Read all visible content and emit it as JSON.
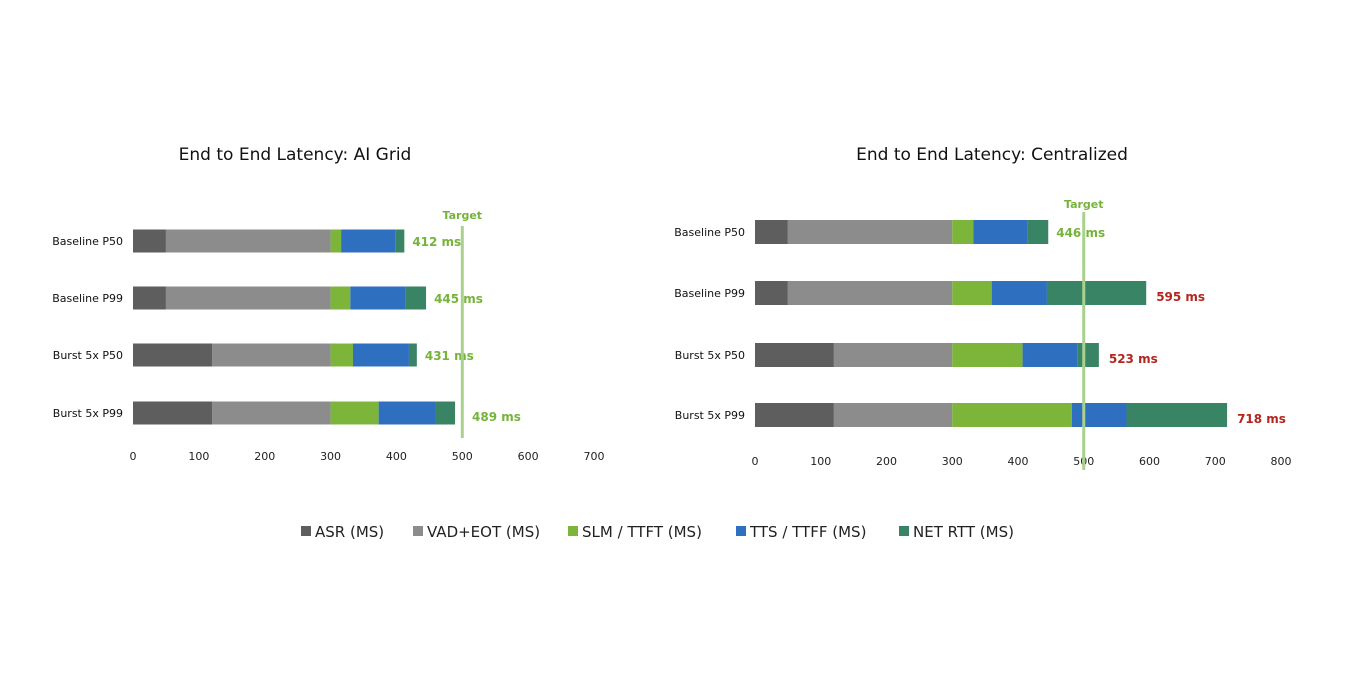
{
  "chart_data": [
    {
      "type": "bar",
      "orientation": "horizontal",
      "stacked": true,
      "title": "End to End Latency: AI Grid",
      "categories": [
        "Baseline P50",
        "Baseline P99",
        "Burst 5x P50",
        "Burst 5x P99"
      ],
      "series": [
        {
          "name": "ASR (MS)",
          "values": [
            50,
            50,
            120,
            120
          ]
        },
        {
          "name": "VAD+EOT (MS)",
          "values": [
            250,
            250,
            180,
            180
          ]
        },
        {
          "name": "SLM / TTFT (MS)",
          "values": [
            16,
            30,
            34,
            73
          ]
        },
        {
          "name": "TTS / TTFF (MS)",
          "values": [
            83,
            84,
            85,
            87
          ]
        },
        {
          "name": "NET RTT (MS)",
          "values": [
            13,
            31,
            12,
            29
          ]
        }
      ],
      "total_labels": [
        "412 ms",
        "445 ms",
        "431 ms",
        "489 ms"
      ],
      "total_label_status": [
        "ok",
        "ok",
        "ok",
        "ok"
      ],
      "target": {
        "label": "Target",
        "value": 500
      },
      "xlim": [
        0,
        700
      ],
      "xticks": [
        0,
        100,
        200,
        300,
        400,
        500,
        600,
        700
      ],
      "grid": false
    },
    {
      "type": "bar",
      "orientation": "horizontal",
      "stacked": true,
      "title": "End to End Latency: Centralized",
      "categories": [
        "Baseline P50",
        "Baseline P99",
        "Burst 5x P50",
        "Burst 5x P99"
      ],
      "series": [
        {
          "name": "ASR (MS)",
          "values": [
            50,
            50,
            120,
            120
          ]
        },
        {
          "name": "VAD+EOT (MS)",
          "values": [
            250,
            250,
            180,
            180
          ]
        },
        {
          "name": "SLM / TTFT (MS)",
          "values": [
            32,
            60,
            107,
            182
          ]
        },
        {
          "name": "TTS / TTFF (MS)",
          "values": [
            83,
            84,
            83,
            83
          ]
        },
        {
          "name": "NET RTT (MS)",
          "values": [
            31,
            151,
            33,
            153
          ]
        }
      ],
      "total_labels": [
        "446 ms",
        "595 ms",
        "523 ms",
        "718 ms"
      ],
      "total_label_status": [
        "ok",
        "over",
        "over",
        "over"
      ],
      "target": {
        "label": "Target",
        "value": 500
      },
      "xlim": [
        0,
        800
      ],
      "xticks": [
        0,
        100,
        200,
        300,
        400,
        500,
        600,
        700,
        800
      ],
      "grid": false
    }
  ],
  "legend": {
    "placement": "bottom",
    "items": [
      "ASR (MS)",
      "VAD+EOT (MS)",
      "SLM / TTFT (MS)",
      "TTS / TTFF (MS)",
      "NET RTT (MS)"
    ]
  },
  "colors": {
    "series": [
      "#5e5e5e",
      "#8c8c8c",
      "#7db53a",
      "#2f6fc0",
      "#3a8466"
    ],
    "target_line": "#a9d18e",
    "label_ok": "#76b33a",
    "label_over": "#b3261e"
  }
}
